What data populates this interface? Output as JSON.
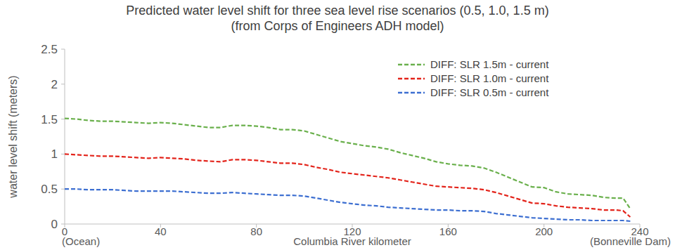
{
  "chart_data": {
    "type": "line",
    "title": "Predicted water level shift for three sea level rise scenarios (0.5, 1.0, 1.5 m)",
    "subtitle": "(from Corps of Engineers ADH model)",
    "x_label": "Columbia River kilometer",
    "y_label": "water level shift (meters)",
    "annotations": [
      {
        "text": "(Ocean)",
        "x": 0
      },
      {
        "text": "(Bonneville Dam)",
        "x": 240
      }
    ],
    "x": [
      0,
      5,
      10,
      15,
      20,
      25,
      30,
      35,
      40,
      45,
      50,
      55,
      60,
      65,
      70,
      75,
      80,
      85,
      90,
      95,
      100,
      105,
      110,
      115,
      120,
      125,
      130,
      135,
      140,
      145,
      150,
      155,
      160,
      165,
      170,
      175,
      180,
      185,
      190,
      195,
      200,
      205,
      210,
      215,
      220,
      225,
      230,
      233,
      236
    ],
    "series": [
      {
        "name": "DIFF: SLR 1.5m - current",
        "color": "#6ab04c",
        "line_style": "dashed",
        "values": [
          1.51,
          1.5,
          1.48,
          1.47,
          1.47,
          1.46,
          1.45,
          1.44,
          1.45,
          1.44,
          1.42,
          1.4,
          1.38,
          1.38,
          1.41,
          1.41,
          1.4,
          1.38,
          1.35,
          1.35,
          1.33,
          1.28,
          1.23,
          1.18,
          1.15,
          1.12,
          1.1,
          1.07,
          1.02,
          0.98,
          0.94,
          0.89,
          0.86,
          0.84,
          0.83,
          0.8,
          0.74,
          0.67,
          0.6,
          0.53,
          0.52,
          0.46,
          0.43,
          0.42,
          0.41,
          0.38,
          0.37,
          0.37,
          0.22
        ]
      },
      {
        "name": "DIFF: SLR 1.0m - current",
        "color": "#e3241b",
        "line_style": "dashed",
        "values": [
          1.0,
          0.99,
          0.98,
          0.97,
          0.97,
          0.96,
          0.95,
          0.94,
          0.95,
          0.94,
          0.93,
          0.91,
          0.9,
          0.89,
          0.92,
          0.92,
          0.91,
          0.89,
          0.87,
          0.87,
          0.85,
          0.81,
          0.78,
          0.74,
          0.72,
          0.7,
          0.68,
          0.66,
          0.63,
          0.6,
          0.57,
          0.54,
          0.53,
          0.52,
          0.51,
          0.49,
          0.45,
          0.4,
          0.35,
          0.3,
          0.29,
          0.26,
          0.24,
          0.23,
          0.22,
          0.2,
          0.2,
          0.19,
          0.1
        ]
      },
      {
        "name": "DIFF: SLR 0.5m - current",
        "color": "#3d6fd1",
        "line_style": "dashed",
        "values": [
          0.5,
          0.5,
          0.49,
          0.49,
          0.49,
          0.48,
          0.47,
          0.47,
          0.47,
          0.47,
          0.46,
          0.45,
          0.44,
          0.44,
          0.45,
          0.44,
          0.43,
          0.42,
          0.41,
          0.41,
          0.4,
          0.37,
          0.34,
          0.31,
          0.29,
          0.27,
          0.26,
          0.24,
          0.23,
          0.22,
          0.21,
          0.2,
          0.2,
          0.19,
          0.19,
          0.18,
          0.15,
          0.13,
          0.11,
          0.09,
          0.08,
          0.07,
          0.06,
          0.06,
          0.05,
          0.05,
          0.05,
          0.05,
          0.04
        ]
      }
    ],
    "xlim": [
      0,
      240
    ],
    "xticks": [
      0,
      40,
      80,
      120,
      160,
      200,
      240
    ],
    "ylim": [
      0,
      2.5
    ],
    "yticks": [
      0,
      0.5,
      1,
      1.5,
      2,
      2.5
    ],
    "grid": false,
    "legend": "top-right"
  }
}
